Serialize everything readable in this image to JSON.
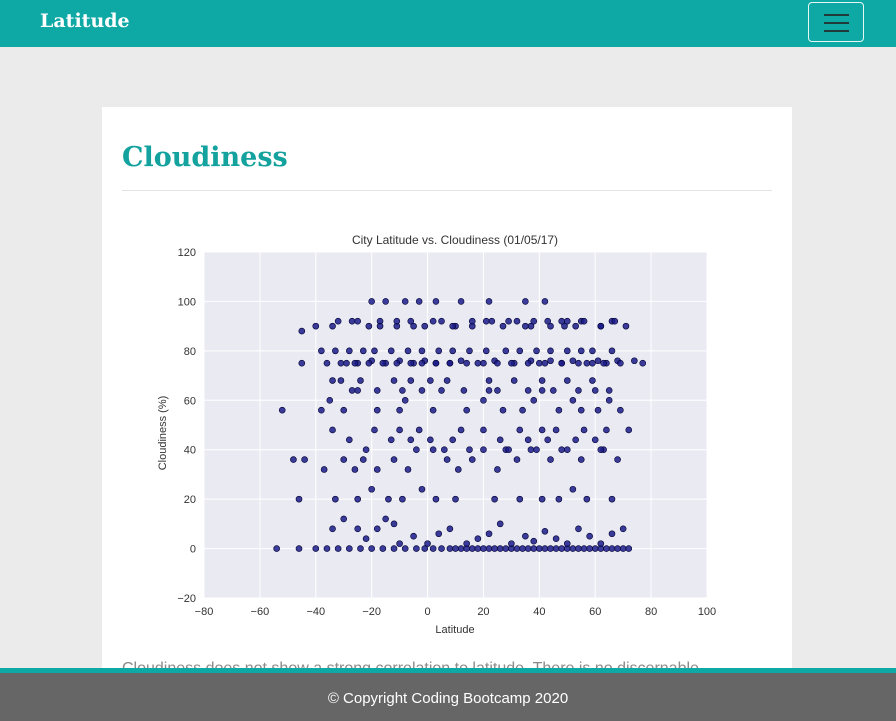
{
  "navbar": {
    "brand": "Latitude",
    "toggle_icon": "hamburger-menu-icon"
  },
  "page": {
    "title": "Cloudiness",
    "description": "Cloudiness does not show a strong correlation to latitude. There is no discernable"
  },
  "chart_data": {
    "type": "scatter",
    "title": "City Latitude vs. Cloudiness (01/05/17)",
    "xlabel": "Latitude",
    "ylabel": "Cloudiness (%)",
    "xlim": [
      -80,
      100
    ],
    "ylim": [
      -20,
      120
    ],
    "xticks": [
      "−80",
      "−60",
      "−40",
      "−20",
      "0",
      "20",
      "40",
      "60",
      "80",
      "100"
    ],
    "yticks": [
      "−20",
      "0",
      "20",
      "40",
      "60",
      "80",
      "100",
      "120"
    ],
    "grid": true,
    "background_color": "#eaeaf2",
    "marker_color": "#1b1b8a",
    "x": [
      -54,
      -46,
      -40,
      -36,
      -32,
      -28,
      -24,
      -20,
      -16,
      -12,
      -8,
      -4,
      -1,
      2,
      5,
      8,
      10,
      12,
      14,
      16,
      18,
      20,
      22,
      24,
      26,
      28,
      30,
      32,
      34,
      36,
      38,
      40,
      42,
      44,
      46,
      48,
      50,
      52,
      54,
      56,
      58,
      60,
      62,
      64,
      66,
      68,
      70,
      72,
      -34,
      -30,
      -25,
      -22,
      -18,
      -15,
      -12,
      -10,
      -5,
      0,
      4,
      8,
      14,
      18,
      22,
      26,
      30,
      35,
      38,
      42,
      46,
      50,
      54,
      58,
      62,
      66,
      70,
      -46,
      -33,
      -25,
      -20,
      -14,
      -9,
      -2,
      3,
      10,
      24,
      33,
      41,
      47,
      52,
      57,
      66,
      -48,
      -44,
      -37,
      -30,
      -26,
      -23,
      -18,
      -12,
      -7,
      -4,
      2,
      7,
      11,
      16,
      20,
      25,
      28,
      32,
      37,
      44,
      48,
      55,
      63,
      68,
      -34,
      -28,
      -22,
      -19,
      -13,
      -10,
      -6,
      -3,
      1,
      6,
      9,
      12,
      15,
      20,
      26,
      29,
      33,
      36,
      39,
      41,
      43,
      46,
      50,
      53,
      56,
      60,
      62,
      64,
      -52,
      -38,
      -35,
      -30,
      -25,
      -18,
      -10,
      -8,
      2,
      5,
      14,
      20,
      22,
      27,
      34,
      38,
      41,
      47,
      52,
      55,
      60,
      61,
      65,
      69,
      -34,
      -31,
      -27,
      -24,
      -18,
      -12,
      -9,
      -6,
      -2,
      1,
      7,
      13,
      22,
      25,
      31,
      36,
      41,
      45,
      50,
      54,
      59,
      65,
      72,
      -29,
      -25,
      -20,
      -15,
      -10,
      -5,
      -1,
      3,
      8,
      12,
      18,
      24,
      31,
      37,
      40,
      44,
      48,
      52,
      57,
      61,
      64,
      68,
      -38,
      -33,
      -28,
      -23,
      -19,
      -13,
      -7,
      -2,
      4,
      9,
      15,
      21,
      28,
      33,
      39,
      44,
      50,
      55,
      59,
      66,
      -45,
      -36,
      -31,
      -26,
      -21,
      -16,
      -11,
      -6,
      -2,
      3,
      8,
      14,
      20,
      25,
      30,
      36,
      42,
      48,
      54,
      59,
      63,
      69,
      74,
      77,
      -40,
      -34,
      -27,
      -21,
      -17,
      -11,
      -6,
      -1,
      5,
      10,
      16,
      23,
      27,
      32,
      37,
      43,
      49,
      55,
      62,
      66,
      -45,
      -32,
      -25,
      -17,
      -11,
      -5,
      2,
      9,
      16,
      21,
      29,
      35,
      38,
      44,
      48,
      53,
      56,
      62,
      67,
      71,
      -20,
      -15,
      -8,
      -3,
      3,
      12,
      22,
      35,
      42,
      50
    ],
    "y": [
      0,
      0,
      0,
      0,
      0,
      0,
      0,
      0,
      0,
      0,
      0,
      0,
      0,
      0,
      0,
      0,
      0,
      0,
      0,
      0,
      0,
      0,
      0,
      0,
      0,
      0,
      0,
      0,
      0,
      0,
      0,
      0,
      0,
      0,
      0,
      0,
      0,
      0,
      0,
      0,
      0,
      0,
      0,
      0,
      0,
      0,
      0,
      0,
      8,
      12,
      8,
      4,
      8,
      12,
      10,
      2,
      5,
      2,
      6,
      8,
      2,
      4,
      6,
      10,
      2,
      5,
      3,
      7,
      4,
      2,
      8,
      5,
      2,
      6,
      8,
      20,
      20,
      20,
      24,
      20,
      20,
      24,
      20,
      20,
      20,
      20,
      20,
      20,
      24,
      20,
      20,
      36,
      36,
      32,
      36,
      32,
      36,
      32,
      36,
      32,
      40,
      40,
      36,
      32,
      36,
      40,
      32,
      40,
      36,
      40,
      36,
      40,
      36,
      40,
      36,
      48,
      44,
      40,
      48,
      44,
      48,
      44,
      48,
      44,
      40,
      44,
      48,
      40,
      48,
      44,
      40,
      48,
      44,
      40,
      48,
      44,
      48,
      40,
      44,
      48,
      44,
      40,
      48,
      56,
      56,
      60,
      56,
      64,
      56,
      56,
      60,
      56,
      64,
      56,
      60,
      64,
      56,
      56,
      60,
      64,
      56,
      60,
      56,
      64,
      56,
      60,
      56,
      68,
      68,
      64,
      68,
      64,
      68,
      64,
      68,
      64,
      68,
      68,
      64,
      68,
      64,
      68,
      64,
      68,
      64,
      68,
      64,
      68,
      64,
      48,
      75,
      75,
      76,
      75,
      76,
      75,
      76,
      75,
      75,
      76,
      75,
      76,
      75,
      76,
      75,
      76,
      75,
      76,
      75,
      76,
      75,
      76,
      80,
      80,
      80,
      80,
      80,
      80,
      80,
      80,
      80,
      80,
      80,
      80,
      80,
      80,
      80,
      80,
      80,
      80,
      80,
      80,
      75,
      75,
      75,
      75,
      75,
      75,
      75,
      75,
      75,
      75,
      75,
      75,
      75,
      75,
      75,
      75,
      75,
      75,
      75,
      75,
      75,
      75,
      76,
      75,
      90,
      90,
      92,
      90,
      92,
      90,
      92,
      90,
      92,
      90,
      90,
      92,
      90,
      92,
      90,
      92,
      90,
      92,
      90,
      92,
      88,
      92,
      92,
      90,
      92,
      90,
      92,
      90,
      92,
      92,
      92,
      90,
      92,
      90,
      92,
      90,
      92,
      90,
      92,
      90,
      100,
      100,
      100,
      100,
      100,
      100,
      100,
      100,
      100,
      92
    ]
  },
  "footer": {
    "text": "© Copyright Coding Bootcamp 2020"
  }
}
